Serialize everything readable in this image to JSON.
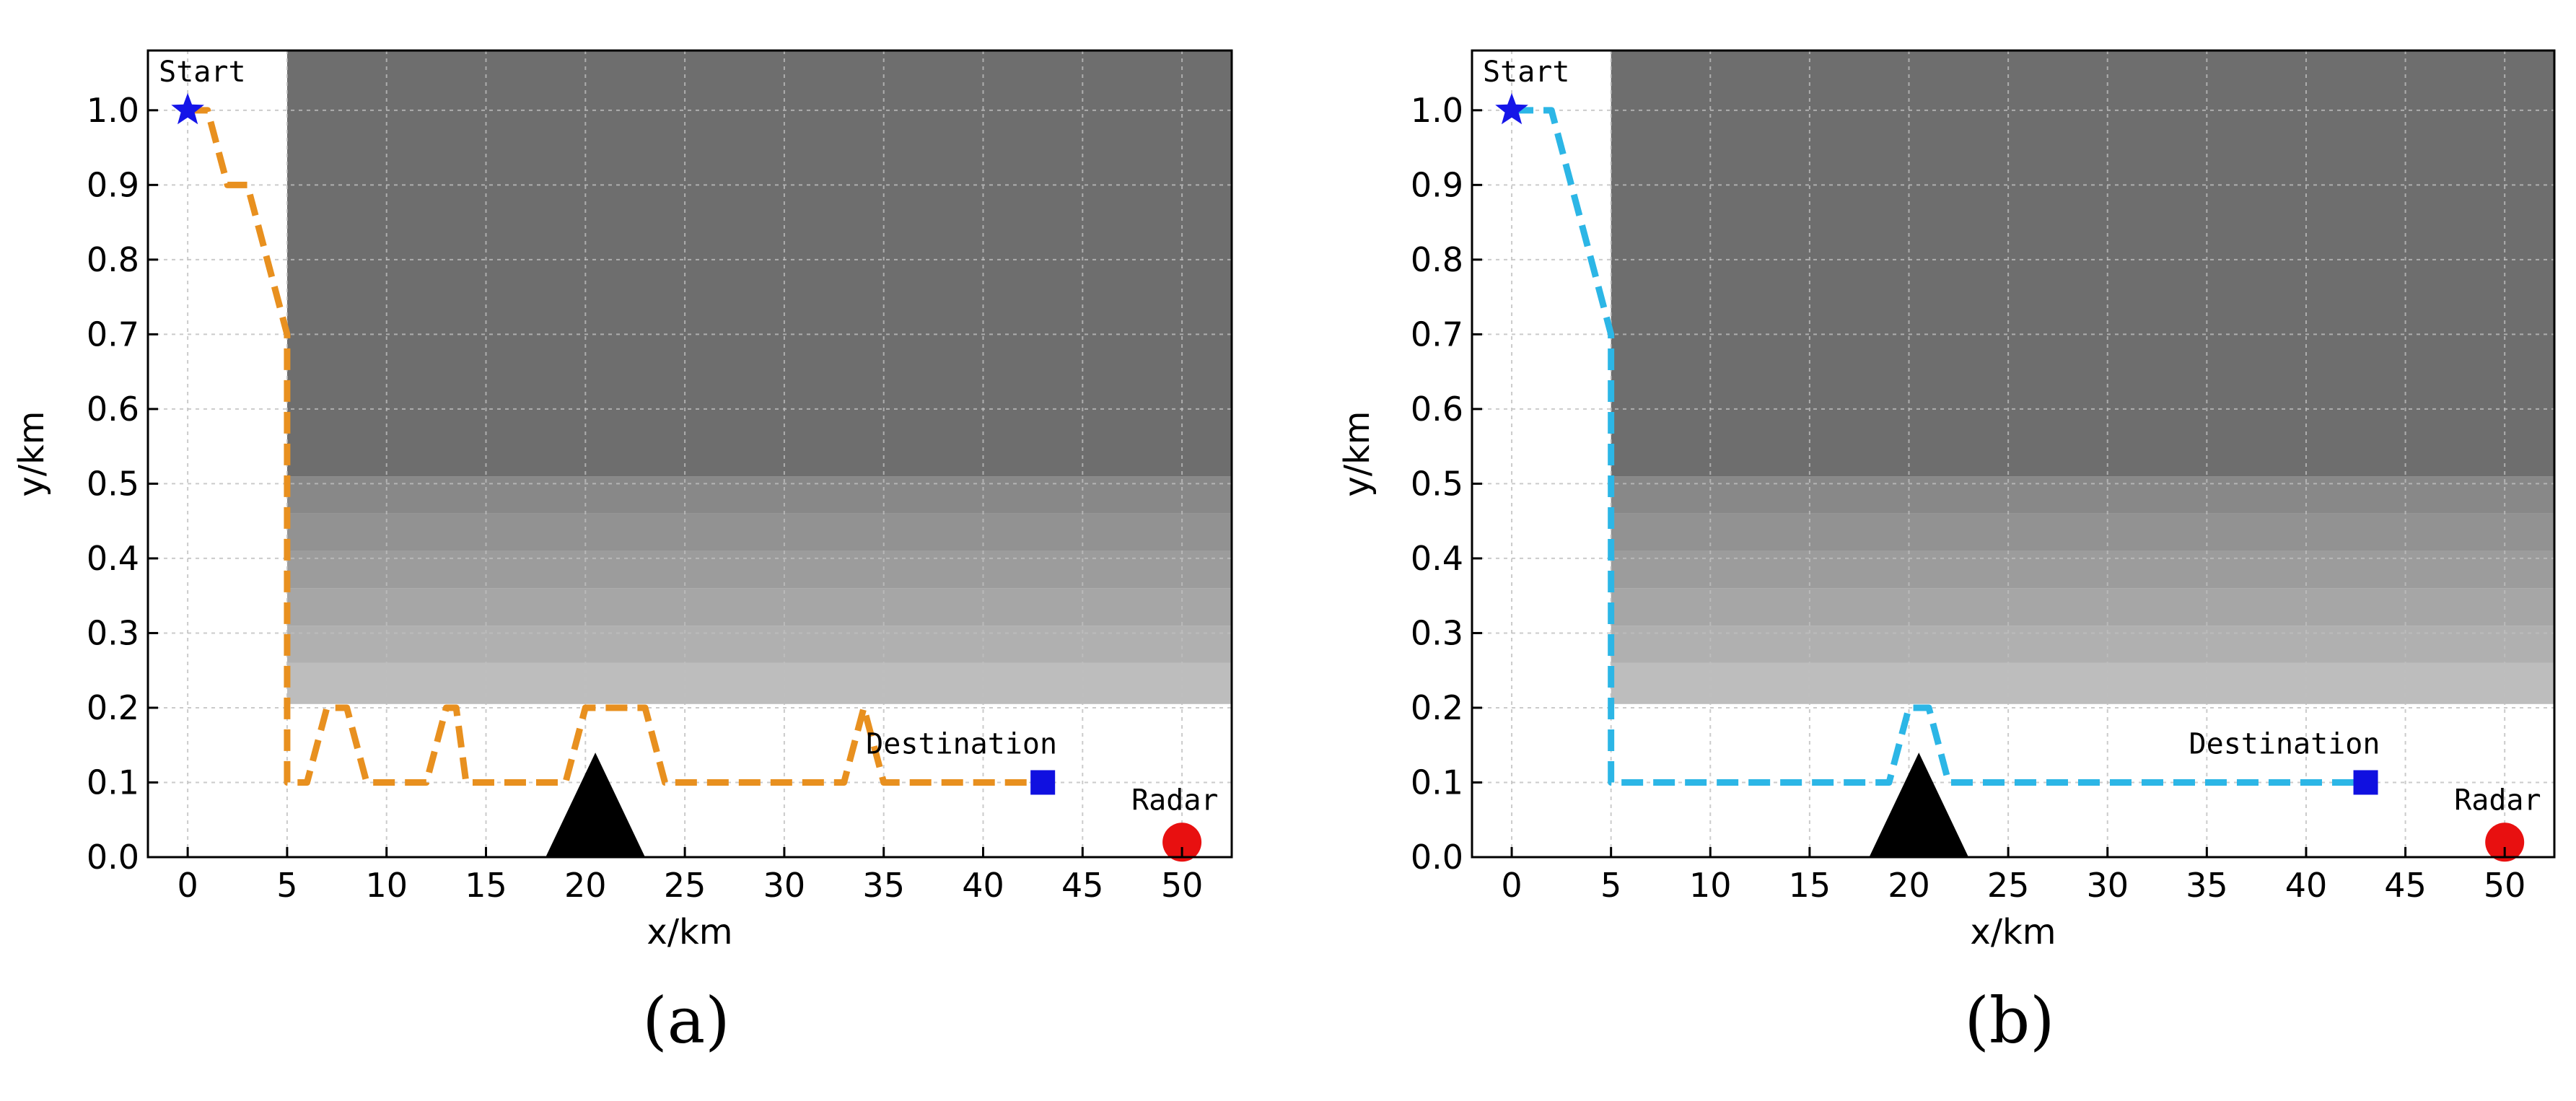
{
  "chart_data": [
    {
      "type": "line",
      "panel_label": "(a)",
      "xlabel": "x/km",
      "ylabel": "y/km",
      "xlim": [
        -2,
        52.5
      ],
      "ylim": [
        0,
        1.08
      ],
      "xticks": [
        "0",
        "5",
        "10",
        "15",
        "20",
        "25",
        "30",
        "35",
        "40",
        "45",
        "50"
      ],
      "yticks": [
        "0.0",
        "0.1",
        "0.2",
        "0.3",
        "0.4",
        "0.5",
        "0.6",
        "0.7",
        "0.8",
        "0.9",
        "1.0"
      ],
      "grid": true,
      "path_color": "#E8901F",
      "path": {
        "x": [
          0,
          1,
          2,
          3,
          5,
          5,
          5,
          6,
          7,
          7.5,
          8,
          9,
          11,
          12,
          13,
          13.5,
          14,
          15,
          18,
          19,
          20,
          23,
          24,
          25,
          28,
          33,
          34,
          35,
          43
        ],
        "y": [
          1.0,
          1.0,
          0.9,
          0.9,
          0.7,
          0.2,
          0.1,
          0.1,
          0.2,
          0.2,
          0.2,
          0.1,
          0.1,
          0.1,
          0.2,
          0.2,
          0.1,
          0.1,
          0.1,
          0.1,
          0.2,
          0.2,
          0.1,
          0.1,
          0.1,
          0.1,
          0.2,
          0.1,
          0.1
        ]
      },
      "mountain": {
        "x": [
          18,
          20.5,
          23
        ],
        "y": [
          0,
          0.14,
          0
        ]
      },
      "shaded_region": {
        "x_start": 5,
        "y_start": 0.205,
        "bands": [
          0.205,
          0.26,
          0.31,
          0.36,
          0.41,
          0.46,
          0.51,
          1.08
        ],
        "band_colors": [
          "#BDBDBD",
          "#B0B0B0",
          "#A6A6A6",
          "#9C9C9C",
          "#929292",
          "#888888",
          "#6E6E6E"
        ]
      },
      "start": {
        "label": "Start",
        "x": 0,
        "y": 1.0
      },
      "destination": {
        "label": "Destination",
        "x": 43,
        "y": 0.1
      },
      "radar": {
        "label": "Radar",
        "x": 50,
        "y": 0.02
      }
    },
    {
      "type": "line",
      "panel_label": "(b)",
      "xlabel": "x/km",
      "ylabel": "y/km",
      "xlim": [
        -2,
        52.5
      ],
      "ylim": [
        0,
        1.08
      ],
      "xticks": [
        "0",
        "5",
        "10",
        "15",
        "20",
        "25",
        "30",
        "35",
        "40",
        "45",
        "50"
      ],
      "yticks": [
        "0.0",
        "0.1",
        "0.2",
        "0.3",
        "0.4",
        "0.5",
        "0.6",
        "0.7",
        "0.8",
        "0.9",
        "1.0"
      ],
      "grid": true,
      "path_color": "#2CB6E6",
      "path": {
        "x": [
          0,
          2,
          5,
          5,
          5,
          19,
          20,
          21,
          22,
          43
        ],
        "y": [
          1.0,
          1.0,
          0.7,
          0.2,
          0.1,
          0.1,
          0.2,
          0.2,
          0.1,
          0.1
        ]
      },
      "mountain": {
        "x": [
          18,
          20.5,
          23
        ],
        "y": [
          0,
          0.14,
          0
        ]
      },
      "shaded_region": {
        "x_start": 5,
        "y_start": 0.205,
        "bands": [
          0.205,
          0.26,
          0.31,
          0.36,
          0.41,
          0.46,
          0.51,
          1.08
        ],
        "band_colors": [
          "#BDBDBD",
          "#B0B0B0",
          "#A6A6A6",
          "#9C9C9C",
          "#929292",
          "#888888",
          "#6E6E6E"
        ]
      },
      "start": {
        "label": "Start",
        "x": 0,
        "y": 1.0
      },
      "destination": {
        "label": "Destination",
        "x": 43,
        "y": 0.1
      },
      "radar": {
        "label": "Radar",
        "x": 50,
        "y": 0.02
      }
    }
  ],
  "colors": {
    "start_marker": "#1515E8",
    "destination_marker": "#1010E0",
    "radar_marker": "#E81010",
    "mountain": "#000000",
    "grid": "#BFBFBF"
  }
}
